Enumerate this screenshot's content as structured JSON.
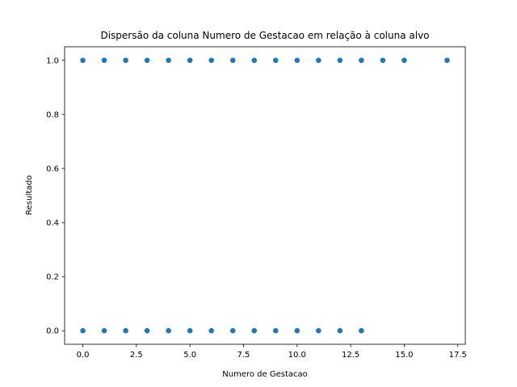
{
  "chart_data": {
    "type": "scatter",
    "title": "Dispersão da coluna Numero de Gestacao em relação à coluna alvo",
    "xlabel": "Numero de Gestacao",
    "ylabel": "Resultado",
    "xlim": [
      -0.85,
      17.85
    ],
    "ylim": [
      -0.05,
      1.05
    ],
    "xticks": [
      0.0,
      2.5,
      5.0,
      7.5,
      10.0,
      12.5,
      15.0,
      17.5
    ],
    "xtick_labels": [
      "0.0",
      "2.5",
      "5.0",
      "7.5",
      "10.0",
      "12.5",
      "15.0",
      "17.5"
    ],
    "yticks": [
      0.0,
      0.2,
      0.4,
      0.6,
      0.8,
      1.0
    ],
    "ytick_labels": [
      "0.0",
      "0.2",
      "0.4",
      "0.6",
      "0.8",
      "1.0"
    ],
    "grid": false,
    "marker_color": "#1f77b4",
    "points": [
      {
        "x": 0,
        "y": 1
      },
      {
        "x": 1,
        "y": 1
      },
      {
        "x": 2,
        "y": 1
      },
      {
        "x": 3,
        "y": 1
      },
      {
        "x": 4,
        "y": 1
      },
      {
        "x": 5,
        "y": 1
      },
      {
        "x": 6,
        "y": 1
      },
      {
        "x": 7,
        "y": 1
      },
      {
        "x": 8,
        "y": 1
      },
      {
        "x": 9,
        "y": 1
      },
      {
        "x": 10,
        "y": 1
      },
      {
        "x": 11,
        "y": 1
      },
      {
        "x": 12,
        "y": 1
      },
      {
        "x": 13,
        "y": 1
      },
      {
        "x": 14,
        "y": 1
      },
      {
        "x": 15,
        "y": 1
      },
      {
        "x": 17,
        "y": 1
      },
      {
        "x": 0,
        "y": 0
      },
      {
        "x": 1,
        "y": 0
      },
      {
        "x": 2,
        "y": 0
      },
      {
        "x": 3,
        "y": 0
      },
      {
        "x": 4,
        "y": 0
      },
      {
        "x": 5,
        "y": 0
      },
      {
        "x": 6,
        "y": 0
      },
      {
        "x": 7,
        "y": 0
      },
      {
        "x": 8,
        "y": 0
      },
      {
        "x": 9,
        "y": 0
      },
      {
        "x": 10,
        "y": 0
      },
      {
        "x": 11,
        "y": 0
      },
      {
        "x": 12,
        "y": 0
      },
      {
        "x": 13,
        "y": 0
      }
    ]
  }
}
